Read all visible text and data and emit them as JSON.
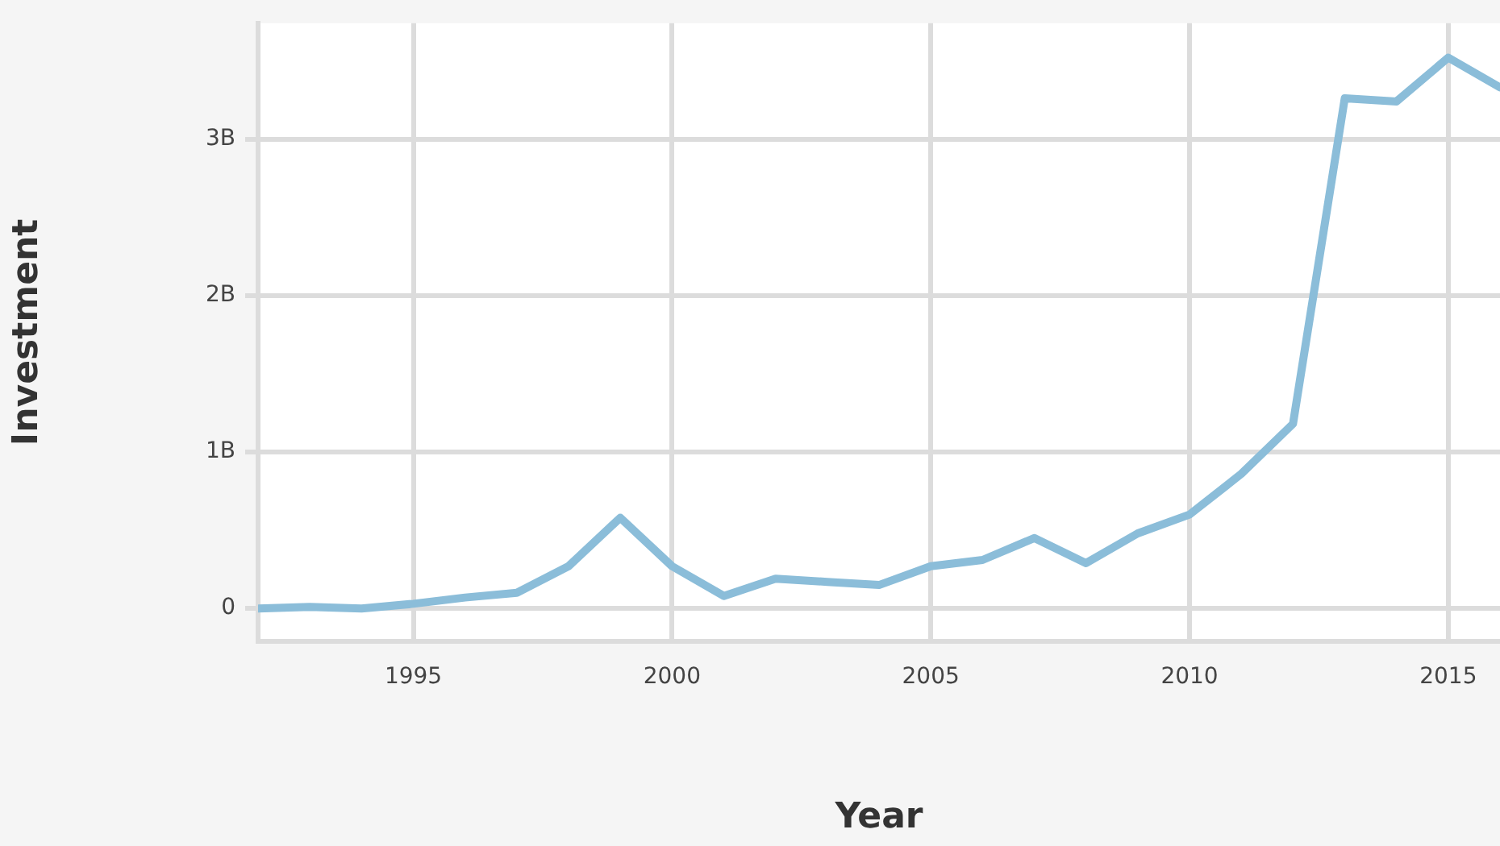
{
  "chart_data": {
    "type": "line",
    "xlabel": "Year",
    "ylabel": "Investment",
    "x": [
      1992,
      1993,
      1994,
      1995,
      1996,
      1997,
      1998,
      1999,
      2000,
      2001,
      2002,
      2003,
      2004,
      2005,
      2006,
      2007,
      2008,
      2009,
      2010,
      2011,
      2012,
      2013,
      2014,
      2015,
      2016
    ],
    "series": [
      {
        "color": "#8bbdd9",
        "values": [
          0,
          10000000,
          0,
          30000000,
          70000000,
          100000000,
          270000000,
          580000000,
          270000000,
          80000000,
          190000000,
          170000000,
          150000000,
          270000000,
          310000000,
          450000000,
          290000000,
          480000000,
          600000000,
          860000000,
          1180000000,
          3260000000,
          3240000000,
          3520000000,
          3330000000
        ]
      }
    ],
    "xlim": [
      1992,
      2016
    ],
    "xticks": [
      1995,
      2000,
      2005,
      2010,
      2015
    ],
    "ylim": [
      -210000000,
      3740000000
    ],
    "yticks": [
      {
        "value": 0,
        "label": "0"
      },
      {
        "value": 1000000000,
        "label": "1B"
      },
      {
        "value": 2000000000,
        "label": "2B"
      },
      {
        "value": 3000000000,
        "label": "3B"
      }
    ],
    "grid": true,
    "legend": false,
    "marker": "none",
    "line_style": "solid"
  }
}
